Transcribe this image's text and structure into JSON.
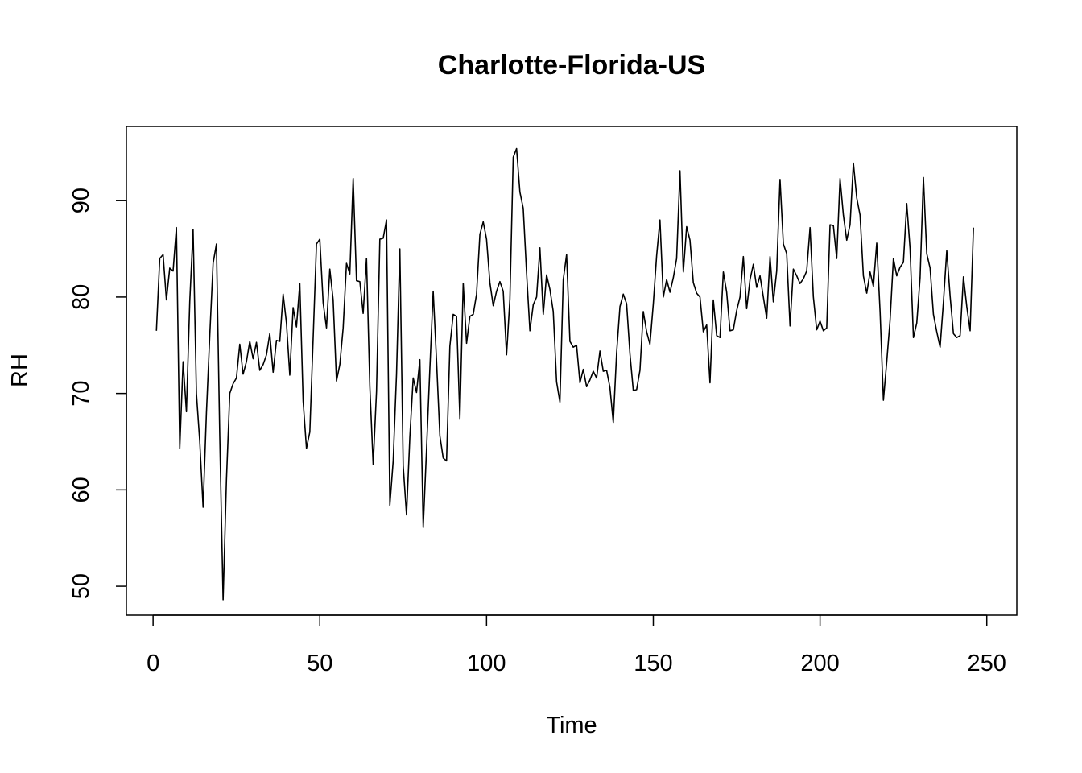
{
  "chart_data": {
    "type": "line",
    "title": "Charlotte-Florida-US",
    "xlabel": "Time",
    "ylabel": "RH",
    "xlim": [
      -8,
      259
    ],
    "ylim": [
      47,
      97.7
    ],
    "x_ticks": [
      0,
      50,
      100,
      150,
      200,
      250
    ],
    "x_tick_labels": [
      "0",
      "50",
      "100",
      "150",
      "200",
      "250"
    ],
    "y_ticks": [
      50,
      60,
      70,
      80,
      90
    ],
    "y_tick_labels": [
      "50",
      "60",
      "70",
      "80",
      "90"
    ],
    "grid": false,
    "legend": "none",
    "x_start": 1,
    "series": [
      {
        "color": "#000000",
        "values": [
          76.5,
          84.0,
          84.4,
          79.7,
          83.0,
          82.7,
          87.2,
          64.3,
          73.3,
          68.1,
          79.5,
          87.0,
          70.0,
          65.0,
          58.2,
          68.0,
          76.0,
          83.5,
          85.5,
          65.5,
          48.6,
          61.0,
          70.0,
          71.0,
          71.6,
          75.1,
          72.0,
          73.3,
          75.4,
          73.6,
          75.3,
          72.4,
          73.0,
          74.0,
          76.2,
          72.2,
          75.5,
          75.4,
          80.3,
          77.3,
          71.9,
          78.9,
          76.9,
          81.4,
          69.2,
          64.3,
          66.0,
          75.7,
          85.5,
          86.0,
          79.4,
          76.8,
          82.9,
          79.7,
          71.3,
          73.0,
          76.8,
          83.5,
          82.4,
          92.3,
          81.7,
          81.6,
          78.3,
          84.0,
          70.7,
          62.6,
          70.2,
          86.0,
          86.1,
          88.0,
          58.4,
          63.0,
          72.0,
          85.0,
          62.5,
          57.4,
          65.5,
          71.6,
          70.1,
          73.5,
          56.1,
          64.2,
          72.6,
          80.6,
          73.4,
          65.6,
          63.3,
          63.0,
          74.9,
          78.2,
          78.0,
          67.4,
          81.4,
          75.2,
          78.0,
          78.2,
          80.3,
          86.5,
          87.8,
          86.0,
          81.5,
          79.1,
          80.6,
          81.6,
          80.6,
          74.0,
          79.8,
          94.5,
          95.4,
          90.9,
          89.2,
          82.5,
          76.5,
          79.2,
          80.0,
          85.1,
          78.2,
          82.3,
          80.8,
          78.5,
          71.2,
          69.1,
          81.8,
          84.4,
          75.4,
          74.8,
          75.0,
          71.1,
          72.5,
          70.7,
          71.4,
          72.3,
          71.6,
          74.4,
          72.3,
          72.4,
          70.6,
          67.0,
          74.2,
          79.0,
          80.3,
          79.3,
          74.1,
          70.3,
          70.4,
          72.4,
          78.5,
          76.4,
          75.1,
          79.3,
          84.3,
          88.0,
          80.0,
          81.8,
          80.5,
          82.0,
          84.0,
          93.1,
          82.6,
          87.3,
          85.9,
          81.5,
          80.4,
          80.0,
          76.4,
          77.1,
          71.1,
          79.7,
          76.0,
          75.8,
          82.6,
          80.5,
          76.5,
          76.6,
          78.6,
          80.0,
          84.2,
          78.8,
          81.8,
          83.4,
          81.0,
          82.2,
          80.0,
          77.8,
          84.2,
          79.5,
          82.7,
          92.2,
          85.5,
          84.5,
          77.0,
          82.9,
          82.2,
          81.4,
          81.9,
          82.7,
          87.2,
          80.0,
          76.6,
          77.5,
          76.5,
          76.8,
          87.5,
          87.4,
          84.0,
          92.3,
          88.5,
          85.9,
          87.5,
          93.9,
          90.3,
          88.5,
          82.2,
          80.4,
          82.6,
          81.1,
          85.6,
          78.5,
          69.3,
          73.3,
          77.6,
          84.0,
          82.2,
          83.1,
          83.6,
          89.7,
          85.0,
          75.8,
          77.3,
          82.0,
          92.4,
          84.5,
          83.0,
          78.2,
          76.4,
          74.8,
          79.5,
          84.8,
          80.1,
          76.2,
          75.8,
          76.0,
          82.1,
          79.0,
          76.5,
          87.2
        ]
      }
    ]
  }
}
